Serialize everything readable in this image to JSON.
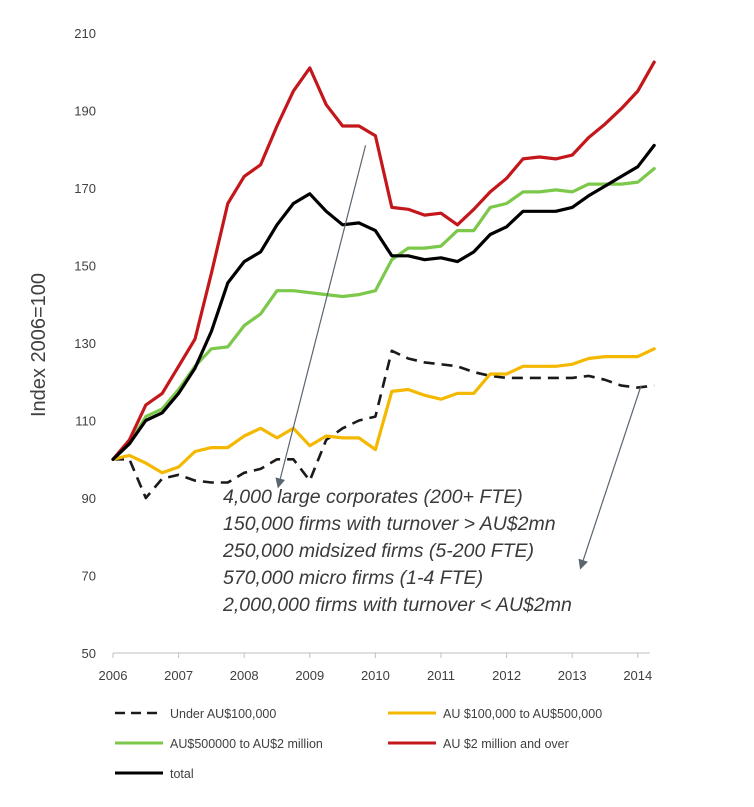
{
  "chart_data": {
    "type": "line",
    "title": "",
    "xlabel": "",
    "ylabel": "Index 2006=100",
    "xlim": [
      2006,
      2014.3
    ],
    "ylim": [
      50,
      210
    ],
    "x_ticks": [
      2006,
      2007,
      2008,
      2009,
      2010,
      2011,
      2012,
      2013,
      2014
    ],
    "y_ticks": [
      50,
      70,
      90,
      110,
      130,
      150,
      170,
      190,
      210
    ],
    "grid": false,
    "legend_position": "bottom",
    "x": [
      2006,
      2006.25,
      2006.5,
      2006.75,
      2007,
      2007.25,
      2007.5,
      2007.75,
      2008,
      2008.25,
      2008.5,
      2008.75,
      2009,
      2009.25,
      2009.5,
      2009.75,
      2010,
      2010.25,
      2010.5,
      2010.75,
      2011,
      2011.25,
      2011.5,
      2011.75,
      2012,
      2012.25,
      2012.5,
      2012.75,
      2013,
      2013.25,
      2013.5,
      2013.75,
      2014,
      2014.25
    ],
    "series": [
      {
        "name": "Under AU$100,000",
        "color": "#1a1a1a",
        "dash": true,
        "values": [
          100,
          100,
          90,
          95,
          96,
          94.5,
          94,
          94,
          96.5,
          97.5,
          100,
          100,
          94.5,
          105,
          108,
          110,
          111,
          128,
          126,
          125,
          124.5,
          124,
          122.5,
          121.5,
          121,
          121,
          121,
          121,
          121,
          121.5,
          120.5,
          119,
          118.5,
          119
        ]
      },
      {
        "name": "AU $100,000 to AU$500,000",
        "color": "#f5b800",
        "values": [
          100,
          101,
          99,
          96.5,
          98,
          102,
          103,
          103,
          106,
          108,
          105.5,
          108,
          103.5,
          106,
          105.5,
          105.5,
          102.5,
          117.5,
          118,
          116.5,
          115.5,
          117,
          117,
          122,
          122,
          124,
          124,
          124,
          124.5,
          126,
          126.5,
          126.5,
          126.5,
          128.5
        ]
      },
      {
        "name": "AU$500000 to AU$2 million",
        "color": "#7cc84a",
        "values": [
          100,
          104,
          111,
          113,
          118,
          124,
          128.5,
          129,
          134.5,
          137.5,
          143.5,
          143.5,
          143,
          142.5,
          142,
          142.5,
          143.5,
          151.5,
          154.5,
          154.5,
          155,
          159,
          159,
          165,
          166,
          169,
          169,
          169.5,
          169,
          171,
          171,
          171,
          171.5,
          175
        ]
      },
      {
        "name": "AU $2 million and over",
        "color": "#c4171c",
        "values": [
          100,
          105,
          114,
          117,
          124,
          131,
          148,
          166,
          173,
          176,
          186,
          195,
          201,
          191.5,
          186,
          186,
          183.5,
          165,
          164.5,
          163,
          163.5,
          160.5,
          164.5,
          169,
          172.5,
          177.5,
          178,
          177.5,
          178.5,
          183,
          186.5,
          190.5,
          195,
          202.5
        ]
      },
      {
        "name": "total",
        "color": "#000000",
        "values": [
          100,
          104,
          110,
          112,
          117,
          123.5,
          133,
          145.5,
          151,
          153.5,
          160.5,
          166,
          168.5,
          164,
          160.5,
          161,
          159,
          152.5,
          152.5,
          151.5,
          152,
          151,
          153.5,
          158,
          160,
          164,
          164,
          164,
          165,
          168,
          170.5,
          173,
          175.5,
          181
        ]
      }
    ],
    "annotations": [
      "4,000 large corporates (200+ FTE)",
      "150,000 firms with turnover > AU$2mn",
      "250,000 midsized firms (5-200 FTE)",
      "570,000 micro firms (1-4 FTE)",
      "2,000,000 firms with turnover < AU$2mn"
    ],
    "arrows": [
      {
        "from": [
          2009.85,
          181
        ],
        "to": [
          2008.52,
          93
        ]
      },
      {
        "from": [
          2014.05,
          119
        ],
        "to": [
          2013.13,
          72
        ]
      }
    ]
  }
}
